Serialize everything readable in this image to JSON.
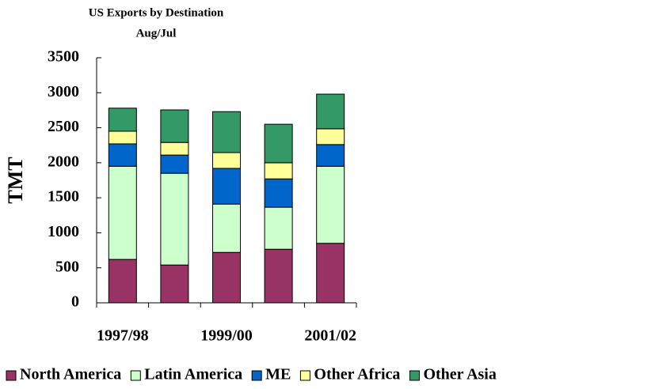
{
  "chart_data": {
    "type": "stacked_bar",
    "title": "US Exports by Destination",
    "subtitle": "Aug/Jul",
    "y_label": "TMT",
    "categories": [
      "1997/98",
      null,
      "1999/00",
      null,
      "2001/02"
    ],
    "series": [
      {
        "name": "North America",
        "color": "#993366",
        "values": [
          620,
          540,
          720,
          765,
          850
        ]
      },
      {
        "name": "Latin America",
        "color": "#ccffcc",
        "values": [
          1330,
          1310,
          690,
          600,
          1100
        ]
      },
      {
        "name": "ME",
        "color": "#0066cc",
        "values": [
          320,
          260,
          510,
          405,
          310
        ]
      },
      {
        "name": "Other Africa",
        "color": "#ffff99",
        "values": [
          180,
          180,
          225,
          230,
          225
        ]
      },
      {
        "name": "Other Asia",
        "color": "#339966",
        "values": [
          330,
          465,
          585,
          550,
          495
        ]
      }
    ],
    "ylim": [
      0,
      3500
    ],
    "yticks": [
      0,
      500,
      1000,
      1500,
      2000,
      2500,
      3000,
      3500
    ],
    "grid": false,
    "legend": "bottom"
  }
}
